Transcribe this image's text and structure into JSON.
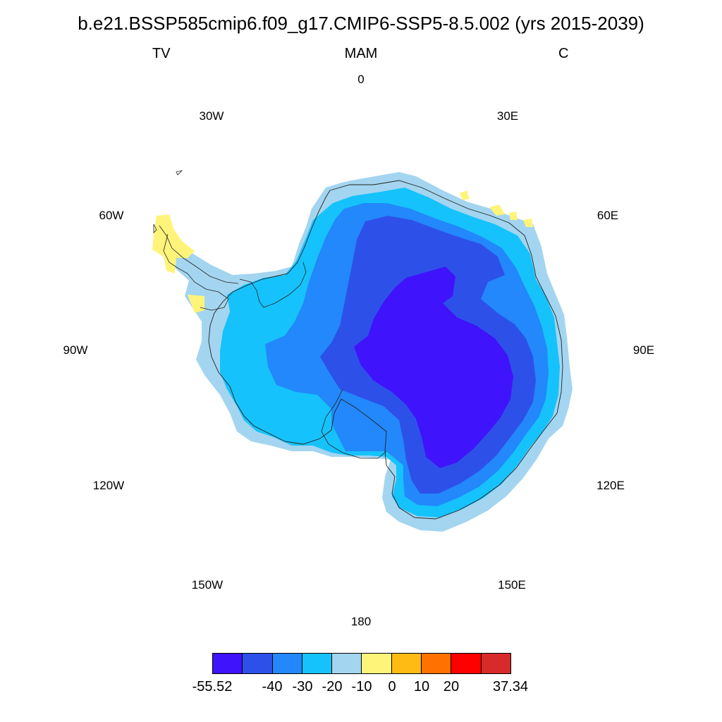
{
  "title": "b.e21.BSSP585cmip6.f09_g17.CMIP6-SSP5-8.5.002 (yrs 2015-2039)",
  "subtitle_left": "TV",
  "subtitle_center": "MAM",
  "subtitle_right": "C",
  "longitude_labels": {
    "lon_0": "0",
    "lon_30e": "30E",
    "lon_60e": "60E",
    "lon_90e": "90E",
    "lon_120e": "120E",
    "lon_150e": "150E",
    "lon_180": "180",
    "lon_150w": "150W",
    "lon_120w": "120W",
    "lon_90w": "90W",
    "lon_60w": "60W",
    "lon_30w": "30W"
  },
  "colorbar": {
    "colors": [
      "#3f13fb",
      "#2d51e8",
      "#2288fb",
      "#16c2fb",
      "#a3d5f0",
      "#fff47a",
      "#fdbb13",
      "#ff7100",
      "#ff0000",
      "#d72a2a"
    ],
    "labels": {
      "min": "-55.52",
      "m40": "-40",
      "m30": "-30",
      "m20": "-20",
      "m10": "-10",
      "z0": "0",
      "p10": "10",
      "p20": "20",
      "max": "37.34"
    }
  }
}
